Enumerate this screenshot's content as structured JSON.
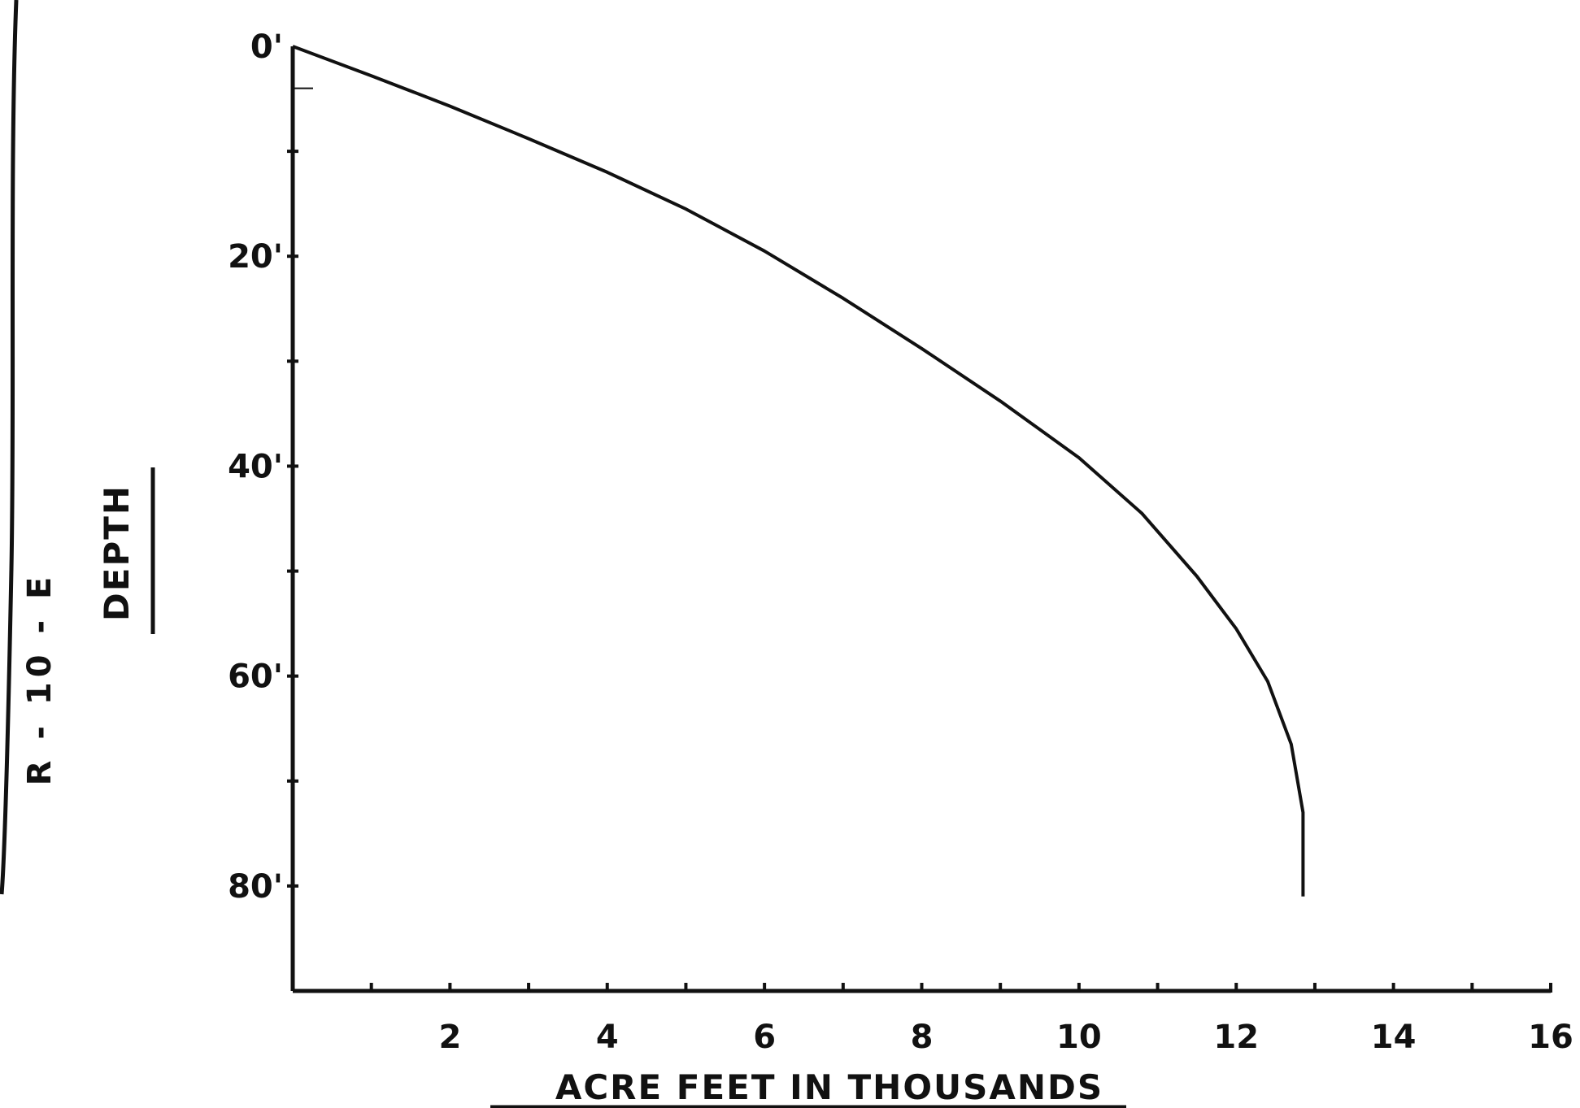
{
  "chart_data": {
    "type": "line",
    "title": "",
    "side_label": "R - 10 - E",
    "xlabel": "ACRE FEET IN THOUSANDS",
    "ylabel": "DEPTH",
    "xlim": [
      0,
      16
    ],
    "ylim": [
      0,
      90
    ],
    "y_inverted": true,
    "grid": false,
    "x_tick_labels": [
      {
        "value": 2,
        "label": "2"
      },
      {
        "value": 4,
        "label": "4"
      },
      {
        "value": 6,
        "label": "6"
      },
      {
        "value": 8,
        "label": "8"
      },
      {
        "value": 10,
        "label": "10"
      },
      {
        "value": 12,
        "label": "12"
      },
      {
        "value": 14,
        "label": "14"
      },
      {
        "value": 16,
        "label": "16"
      }
    ],
    "y_tick_labels": [
      {
        "value": 0,
        "label": "0'"
      },
      {
        "value": 20,
        "label": "20'"
      },
      {
        "value": 40,
        "label": "40'"
      },
      {
        "value": 60,
        "label": "60'"
      },
      {
        "value": 80,
        "label": "80'"
      }
    ],
    "series": [
      {
        "x": [
          0,
          1,
          2,
          3,
          4,
          5,
          6,
          7,
          8,
          9,
          10,
          10.8,
          11.5,
          12.0,
          12.4,
          12.7,
          12.85,
          12.85
        ],
        "y": [
          0,
          2.8,
          5.7,
          8.8,
          12.0,
          15.5,
          19.5,
          24.0,
          28.8,
          33.8,
          39.2,
          44.5,
          50.5,
          55.5,
          60.5,
          66.5,
          73.0,
          81.0
        ],
        "color": "#111111"
      }
    ]
  }
}
